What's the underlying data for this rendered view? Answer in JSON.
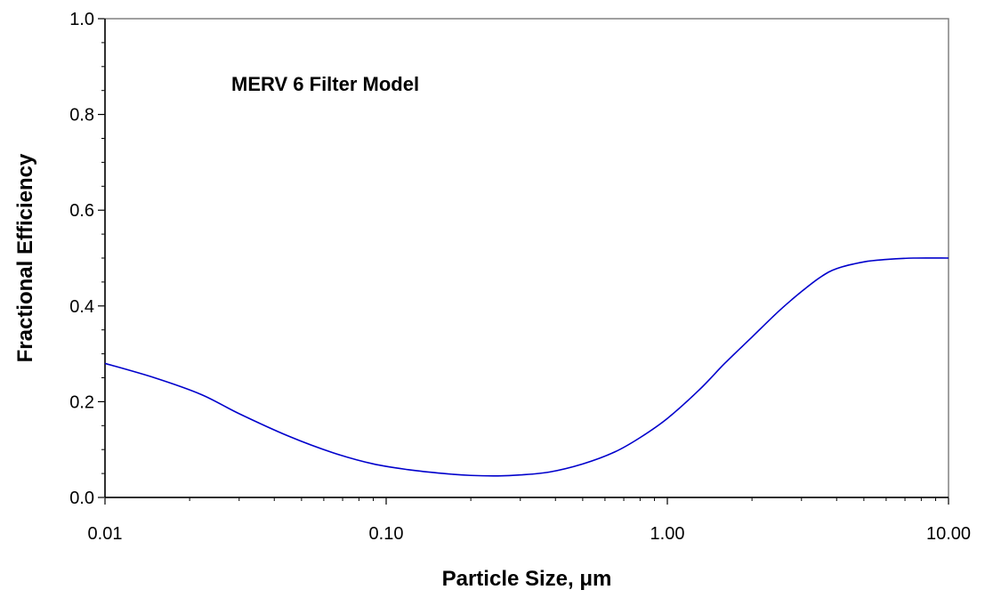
{
  "chart_data": {
    "type": "line",
    "annotation": "MERV 6 Filter Model",
    "xlabel": "Particle Size, μm",
    "ylabel": "Fractional Efficiency",
    "x_scale": "log",
    "xlim": [
      0.01,
      10
    ],
    "ylim": [
      0,
      1
    ],
    "x_ticks": [
      0.01,
      0.1,
      1,
      10
    ],
    "x_tick_labels": [
      "0.01",
      "0.10",
      "1.00",
      "10.00"
    ],
    "y_ticks": [
      0,
      0.2,
      0.4,
      0.6,
      0.8,
      1.0
    ],
    "y_tick_labels": [
      "0.0",
      "0.2",
      "0.4",
      "0.6",
      "0.8",
      "1.0"
    ],
    "grid": false,
    "series": [
      {
        "color": "#0000cc",
        "x": [
          0.01,
          0.015,
          0.022,
          0.03,
          0.045,
          0.065,
          0.09,
          0.12,
          0.16,
          0.2,
          0.25,
          0.3,
          0.38,
          0.5,
          0.65,
          0.8,
          1.0,
          1.3,
          1.6,
          2.0,
          2.5,
          3.0,
          3.5,
          4.0,
          5.0,
          6.0,
          7.5,
          10.0
        ],
        "y": [
          0.28,
          0.25,
          0.215,
          0.175,
          0.128,
          0.093,
          0.07,
          0.058,
          0.05,
          0.046,
          0.045,
          0.047,
          0.053,
          0.07,
          0.095,
          0.125,
          0.165,
          0.225,
          0.28,
          0.335,
          0.39,
          0.43,
          0.46,
          0.478,
          0.492,
          0.497,
          0.5,
          0.5
        ]
      }
    ]
  }
}
